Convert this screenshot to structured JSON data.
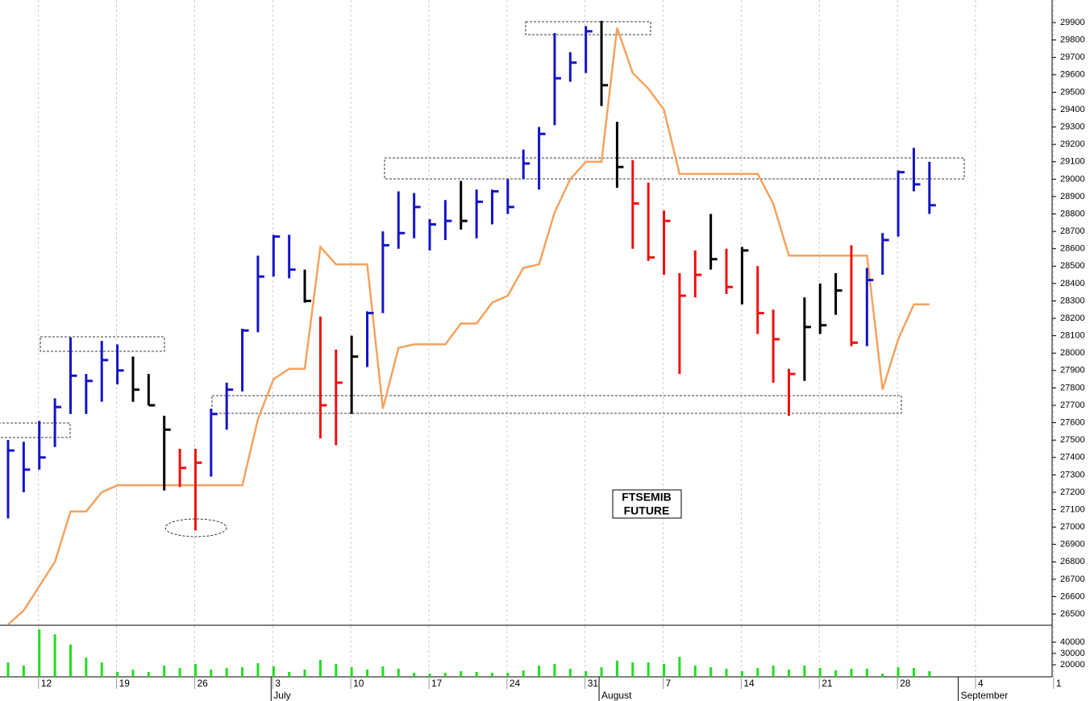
{
  "chart_data": [
    {
      "type": "ohlc",
      "categories": [
        null,
        null,
        "12",
        null,
        null,
        null,
        null,
        "19",
        null,
        null,
        null,
        null,
        "26",
        null,
        null,
        null,
        null,
        "3",
        null,
        null,
        null,
        null,
        "10",
        null,
        null,
        null,
        null,
        "17",
        null,
        null,
        null,
        null,
        "24",
        null,
        null,
        null,
        null,
        "31",
        null,
        null,
        null,
        null,
        "7",
        null,
        null,
        null,
        null,
        "14",
        null,
        null,
        null,
        null,
        "21",
        null,
        null,
        null,
        null,
        "28",
        null,
        null,
        null,
        null,
        "4",
        null,
        null,
        null,
        null,
        "1"
      ],
      "months": [
        null,
        null,
        null,
        null,
        null,
        null,
        null,
        null,
        null,
        null,
        null,
        null,
        null,
        null,
        null,
        null,
        null,
        "July",
        null,
        null,
        null,
        null,
        null,
        null,
        null,
        null,
        null,
        null,
        null,
        null,
        null,
        null,
        null,
        null,
        null,
        null,
        null,
        null,
        "August",
        null,
        null,
        null,
        null,
        null,
        null,
        null,
        null,
        null,
        null,
        null,
        null,
        null,
        null,
        null,
        null,
        null,
        null,
        null,
        null,
        null,
        null,
        "September",
        null,
        null,
        null,
        null,
        null,
        null
      ],
      "high": [
        27500,
        27490,
        27610,
        27740,
        28090,
        27880,
        28070,
        28050,
        27980,
        27880,
        27640,
        27450,
        27450,
        27680,
        27830,
        28140,
        28560,
        28680,
        28680,
        28480,
        28210,
        28020,
        28100,
        28240,
        28700,
        28930,
        28920,
        28770,
        28880,
        28990,
        28940,
        28940,
        29000,
        29170,
        29300,
        29840,
        29730,
        29880,
        29910,
        29330,
        29110,
        28980,
        28820,
        28460,
        28590,
        28800,
        28600,
        28610,
        28500,
        28250,
        27910,
        28320,
        28400,
        28460,
        28620,
        28490,
        28690,
        29050,
        29180,
        29100,
        null,
        null,
        null,
        null,
        null,
        null,
        null,
        null
      ],
      "low": [
        27050,
        27200,
        27330,
        27460,
        27650,
        27650,
        27720,
        27820,
        27720,
        27700,
        27210,
        27230,
        26980,
        27290,
        27560,
        27780,
        28120,
        28440,
        28430,
        28290,
        27510,
        27470,
        27650,
        27920,
        28230,
        28600,
        28660,
        28590,
        28650,
        28710,
        28660,
        28740,
        28800,
        29000,
        28940,
        29310,
        29560,
        29610,
        29420,
        28950,
        28600,
        28530,
        28450,
        27880,
        28320,
        28480,
        28340,
        28280,
        28110,
        27830,
        27640,
        27840,
        28110,
        28220,
        28040,
        28040,
        28450,
        28670,
        28930,
        28800,
        null,
        null,
        null,
        null,
        null,
        null,
        null,
        null
      ],
      "close": [
        27440,
        27330,
        27400,
        27690,
        27870,
        27840,
        27960,
        27900,
        27790,
        27700,
        27560,
        27340,
        27370,
        27650,
        27790,
        28130,
        28440,
        28670,
        28480,
        28300,
        27700,
        27830,
        27980,
        28230,
        28620,
        28690,
        28840,
        28740,
        28760,
        28760,
        28870,
        28930,
        28840,
        29090,
        29260,
        29580,
        29670,
        29850,
        29540,
        29070,
        28860,
        28550,
        28760,
        28330,
        28450,
        28540,
        28380,
        28590,
        28230,
        28080,
        27880,
        28150,
        28160,
        28360,
        28060,
        28420,
        28650,
        29040,
        28970,
        28850,
        null,
        null,
        null,
        null,
        null,
        null,
        null,
        null
      ],
      "bar_colors": [
        "#1414c8",
        "#1414c8",
        "#1414c8",
        "#1414c8",
        "#1414c8",
        "#1414c8",
        "#1414c8",
        "#1414c8",
        "#000000",
        "#000000",
        "#000000",
        "#ee1111",
        "#ee1111",
        "#1414c8",
        "#1414c8",
        "#1414c8",
        "#1414c8",
        "#1414c8",
        "#1414c8",
        "#000000",
        "#ee1111",
        "#ee1111",
        "#000000",
        "#1414c8",
        "#1414c8",
        "#1414c8",
        "#1414c8",
        "#1414c8",
        "#1414c8",
        "#000000",
        "#1414c8",
        "#1414c8",
        "#1414c8",
        "#1414c8",
        "#1414c8",
        "#1414c8",
        "#1414c8",
        "#1414c8",
        "#000000",
        "#000000",
        "#ee1111",
        "#ee1111",
        "#ee1111",
        "#ee1111",
        "#ee1111",
        "#000000",
        "#ee1111",
        "#000000",
        "#ee1111",
        "#ee1111",
        "#ee1111",
        "#000000",
        "#000000",
        "#000000",
        "#ee1111",
        "#1414c8",
        "#1414c8",
        "#1414c8",
        "#1414c8",
        "#1414c8",
        null,
        null,
        null,
        null,
        null,
        null,
        null,
        null
      ],
      "line": {
        "color": "#f5a25e",
        "values": [
          26440,
          26520,
          26660,
          26800,
          27090,
          27090,
          27200,
          27240,
          27240,
          27240,
          27240,
          27240,
          27240,
          27240,
          27240,
          27240,
          27620,
          27850,
          27910,
          27910,
          28610,
          28510,
          28510,
          28510,
          27680,
          28030,
          28050,
          28050,
          28050,
          28170,
          28170,
          28290,
          28330,
          28490,
          28510,
          28810,
          29000,
          29100,
          29100,
          29870,
          29610,
          29520,
          29400,
          29030,
          29030,
          29030,
          29030,
          29030,
          29030,
          28860,
          28560,
          28560,
          28560,
          28560,
          28560,
          28560,
          27790,
          28080,
          28280,
          28280,
          null,
          null,
          null,
          null,
          null,
          null,
          null,
          null
        ]
      },
      "annotation": [
        "FTSEMIB",
        "FUTURE"
      ],
      "ylim": [
        26440,
        30030
      ],
      "yticks": [
        26500,
        26600,
        26700,
        26800,
        26900,
        27000,
        27100,
        27200,
        27300,
        27400,
        27500,
        27600,
        27700,
        27800,
        27900,
        28000,
        28100,
        28200,
        28300,
        28400,
        28500,
        28600,
        28700,
        28800,
        28900,
        29000,
        29100,
        29200,
        29300,
        29400,
        29500,
        29600,
        29700,
        29800,
        29900
      ],
      "grid": true
    },
    {
      "type": "bar",
      "color": "#22dd22",
      "values": [
        22000,
        19300,
        51400,
        47000,
        37900,
        26400,
        22000,
        13600,
        15700,
        13600,
        19300,
        17100,
        20700,
        15700,
        17100,
        17800,
        21400,
        18600,
        13600,
        15700,
        24300,
        20700,
        17800,
        15700,
        18600,
        16400,
        12900,
        12100,
        12900,
        14300,
        13600,
        12900,
        12900,
        15000,
        19300,
        20700,
        16400,
        14300,
        17800,
        23600,
        22100,
        22100,
        20700,
        27100,
        19300,
        17800,
        16400,
        14300,
        17100,
        19300,
        15700,
        19300,
        17100,
        15000,
        16400,
        16400,
        12100,
        17800,
        17100,
        14300,
        null,
        null,
        null,
        null,
        null,
        null,
        null,
        null
      ],
      "ylim": [
        9300,
        55000
      ],
      "yticks": [
        20000,
        30000,
        40000
      ]
    }
  ]
}
